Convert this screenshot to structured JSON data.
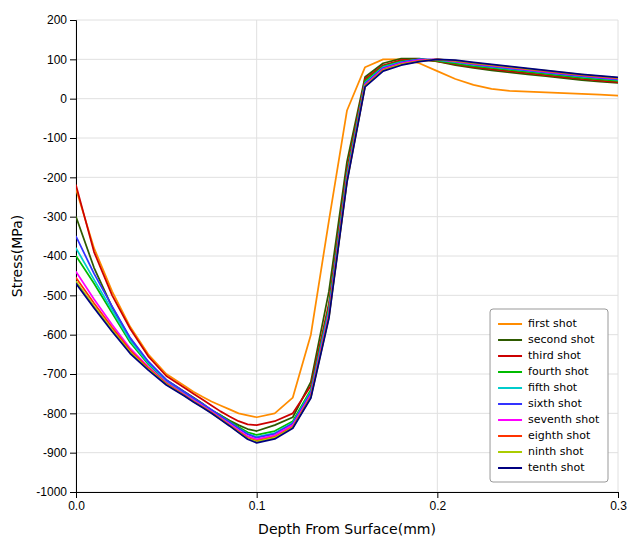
{
  "chart_data": {
    "type": "line",
    "xlabel": "Depth From Surface(mm)",
    "ylabel": "Stress(MPa)",
    "xlim": [
      0,
      0.3
    ],
    "ylim": [
      -1000,
      200
    ],
    "xticks": [
      {
        "value": 0,
        "label": "0.0"
      },
      0.1,
      0.2,
      0.3
    ],
    "yticks": [
      -1000,
      -900,
      -800,
      -700,
      -600,
      -500,
      -400,
      -300,
      -200,
      -100,
      0,
      100,
      200
    ],
    "grid": true,
    "legend": "lower right",
    "x": [
      0.0,
      0.01,
      0.02,
      0.03,
      0.04,
      0.05,
      0.06,
      0.065,
      0.07,
      0.075,
      0.08,
      0.085,
      0.09,
      0.095,
      0.1,
      0.11,
      0.12,
      0.13,
      0.14,
      0.15,
      0.16,
      0.17,
      0.18,
      0.19,
      0.2,
      0.21,
      0.22,
      0.23,
      0.24,
      0.25,
      0.26,
      0.27,
      0.28,
      0.29,
      0.3
    ],
    "series": [
      {
        "name": "first shot",
        "color": "#FF8C00",
        "values": [
          -230,
          -380,
          -490,
          -580,
          -650,
          -700,
          -730,
          -745,
          -758,
          -770,
          -780,
          -790,
          -800,
          -805,
          -810,
          -800,
          -760,
          -600,
          -310,
          -30,
          80,
          100,
          100,
          90,
          70,
          50,
          35,
          25,
          20,
          18,
          16,
          14,
          12,
          10,
          8
        ]
      },
      {
        "name": "second shot",
        "color": "#2E5A00",
        "values": [
          -300,
          -430,
          -530,
          -610,
          -670,
          -715,
          -745,
          -760,
          -775,
          -792,
          -805,
          -818,
          -830,
          -840,
          -845,
          -830,
          -810,
          -720,
          -490,
          -160,
          55,
          90,
          102,
          102,
          95,
          85,
          78,
          72,
          67,
          62,
          57,
          52,
          47,
          43,
          40
        ]
      },
      {
        "name": "third shot",
        "color": "#CC0000",
        "values": [
          -220,
          -390,
          -500,
          -585,
          -655,
          -705,
          -735,
          -750,
          -765,
          -780,
          -795,
          -808,
          -820,
          -828,
          -830,
          -820,
          -800,
          -730,
          -520,
          -180,
          50,
          85,
          98,
          100,
          95,
          88,
          80,
          75,
          70,
          65,
          60,
          55,
          50,
          46,
          42
        ]
      },
      {
        "name": "fourth shot",
        "color": "#00BB00",
        "values": [
          -400,
          -470,
          -545,
          -620,
          -675,
          -720,
          -750,
          -765,
          -778,
          -792,
          -805,
          -820,
          -835,
          -848,
          -855,
          -845,
          -820,
          -740,
          -530,
          -190,
          45,
          82,
          95,
          100,
          96,
          90,
          83,
          78,
          73,
          68,
          63,
          58,
          53,
          49,
          45
        ]
      },
      {
        "name": "fifth shot",
        "color": "#00CCCC",
        "values": [
          -380,
          -460,
          -538,
          -615,
          -672,
          -718,
          -748,
          -763,
          -777,
          -792,
          -808,
          -823,
          -838,
          -852,
          -860,
          -850,
          -824,
          -745,
          -538,
          -195,
          40,
          80,
          93,
          100,
          98,
          93,
          86,
          81,
          76,
          71,
          66,
          61,
          56,
          52,
          48
        ]
      },
      {
        "name": "sixth shot",
        "color": "#3333FF",
        "values": [
          -350,
          -445,
          -528,
          -608,
          -668,
          -715,
          -746,
          -761,
          -776,
          -791,
          -807,
          -822,
          -838,
          -853,
          -862,
          -852,
          -826,
          -748,
          -542,
          -200,
          38,
          78,
          92,
          100,
          99,
          94,
          87,
          82,
          77,
          72,
          67,
          62,
          57,
          53,
          49
        ]
      },
      {
        "name": "seventh shot",
        "color": "#FF00FF",
        "values": [
          -440,
          -510,
          -575,
          -635,
          -682,
          -722,
          -752,
          -767,
          -781,
          -796,
          -812,
          -827,
          -843,
          -858,
          -866,
          -856,
          -830,
          -753,
          -548,
          -205,
          35,
          75,
          90,
          98,
          100,
          95,
          89,
          84,
          79,
          74,
          69,
          64,
          59,
          55,
          51
        ]
      },
      {
        "name": "eighth shot",
        "color": "#FF3300",
        "values": [
          -455,
          -520,
          -582,
          -640,
          -685,
          -724,
          -754,
          -769,
          -783,
          -798,
          -814,
          -830,
          -846,
          -862,
          -870,
          -860,
          -834,
          -757,
          -553,
          -208,
          33,
          73,
          88,
          96,
          100,
          96,
          90,
          85,
          80,
          75,
          70,
          65,
          60,
          56,
          52
        ]
      },
      {
        "name": "ninth shot",
        "color": "#AACC00",
        "values": [
          -465,
          -528,
          -588,
          -645,
          -688,
          -726,
          -755,
          -770,
          -784,
          -799,
          -815,
          -831,
          -848,
          -864,
          -872,
          -862,
          -836,
          -759,
          -556,
          -210,
          32,
          72,
          87,
          95,
          100,
          97,
          91,
          86,
          81,
          76,
          71,
          66,
          61,
          57,
          53
        ]
      },
      {
        "name": "tenth shot",
        "color": "#000080",
        "values": [
          -470,
          -532,
          -592,
          -648,
          -690,
          -728,
          -756,
          -771,
          -785,
          -800,
          -816,
          -832,
          -849,
          -866,
          -875,
          -865,
          -838,
          -761,
          -558,
          -212,
          30,
          70,
          85,
          94,
          100,
          98,
          92,
          87,
          82,
          77,
          72,
          67,
          62,
          58,
          54
        ]
      }
    ]
  }
}
